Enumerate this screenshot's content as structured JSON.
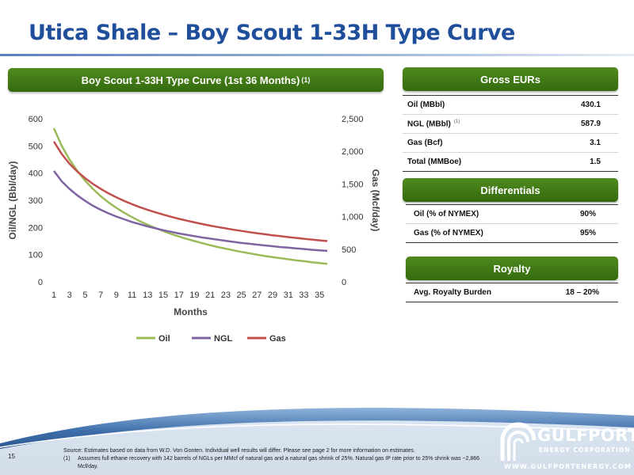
{
  "slide": {
    "title": "Utica Shale – Boy Scout 1-33H Type Curve",
    "page_number": "15"
  },
  "chart_panel": {
    "header": "Boy Scout 1-33H Type Curve (1st 36 Months)",
    "header_note": "(1)"
  },
  "chart_data": {
    "type": "line",
    "x": [
      1,
      2,
      3,
      4,
      5,
      6,
      7,
      8,
      9,
      10,
      11,
      12,
      13,
      14,
      15,
      16,
      17,
      18,
      19,
      20,
      21,
      22,
      23,
      24,
      25,
      26,
      27,
      28,
      29,
      30,
      31,
      32,
      33,
      34,
      35,
      36
    ],
    "x_tick_labels": [
      "1",
      "3",
      "5",
      "7",
      "9",
      "11",
      "13",
      "15",
      "17",
      "19",
      "21",
      "23",
      "25",
      "27",
      "29",
      "31",
      "33",
      "35"
    ],
    "xlabel": "Months",
    "ylabel": "Oil/NGL (Bbl/day)",
    "y2label": "Gas (Mcf/day)",
    "ylim": [
      0,
      600
    ],
    "y2lim": [
      0,
      2500
    ],
    "y_ticks": [
      "0",
      "100",
      "200",
      "300",
      "400",
      "500",
      "600"
    ],
    "y2_ticks": [
      "0",
      "500",
      "1,000",
      "1,500",
      "2,000",
      "2,500"
    ],
    "series": [
      {
        "name": "Oil",
        "axis": "left",
        "color": "#9bbb59",
        "values": [
          565,
          500,
          450,
          408,
          372,
          342,
          315,
          292,
          272,
          254,
          238,
          223,
          210,
          198,
          187,
          176,
          167,
          158,
          150,
          142,
          135,
          128,
          122,
          116,
          110,
          105,
          100,
          95,
          91,
          87,
          83,
          79,
          76,
          72,
          69,
          66
        ]
      },
      {
        "name": "NGL",
        "axis": "left",
        "color": "#8064a2",
        "values": [
          408,
          370,
          342,
          318,
          298,
          280,
          265,
          252,
          240,
          230,
          220,
          212,
          204,
          197,
          190,
          184,
          178,
          173,
          168,
          163,
          159,
          155,
          151,
          147,
          143,
          140,
          137,
          134,
          131,
          128,
          126,
          123,
          121,
          118,
          116,
          114
        ]
      },
      {
        "name": "Gas",
        "axis": "right",
        "color": "#c0504d",
        "values": [
          2150,
          1960,
          1810,
          1690,
          1590,
          1500,
          1425,
          1355,
          1295,
          1240,
          1190,
          1145,
          1103,
          1065,
          1030,
          997,
          966,
          938,
          911,
          886,
          862,
          840,
          819,
          799,
          780,
          762,
          745,
          729,
          714,
          700,
          686,
          673,
          660,
          648,
          636,
          625
        ]
      }
    ],
    "legend_position": "bottom"
  },
  "gross_eurs": {
    "header": "Gross EURs",
    "rows": [
      {
        "label": "Oil (MBbl)",
        "note": "",
        "value": "430.1"
      },
      {
        "label": "NGL (MBbl)",
        "note": "(1)",
        "value": "587.9"
      },
      {
        "label": "Gas (Bcf)",
        "note": "",
        "value": "3.1"
      },
      {
        "label": "Total (MMBoe)",
        "note": "",
        "value": "1.5"
      }
    ]
  },
  "differentials": {
    "header": "Differentials",
    "rows": [
      {
        "label": "Oil (% of NYMEX)",
        "value": "90%"
      },
      {
        "label": "Gas (% of NYMEX)",
        "value": "95%"
      }
    ]
  },
  "royalty": {
    "header": "Royalty",
    "rows": [
      {
        "label": "Avg. Royalty Burden",
        "value": "18 – 20%"
      }
    ]
  },
  "footer": {
    "source": "Source: Estimates based on data from W.D. Von Gonten. Individual well results will differ. Please see page 2 for more information on estimates.",
    "note_number": "(1)",
    "note_text": "Assumes full ethane recovery with 142 barrels of NGLs per MMcf of natural gas and a natural gas shrink of 25%. Natural gas IP rate prior to 25% shrink was ~2,866 Mcf/day."
  },
  "logo": {
    "name": "GULFPORT",
    "subtitle": "ENERGY CORPORATION",
    "url": "WWW.GULFPORTENERGY.COM"
  },
  "colors": {
    "title_blue": "#1f4e9a",
    "header_green": "#3f7a15",
    "footer_blue": "#1f4e8a"
  }
}
